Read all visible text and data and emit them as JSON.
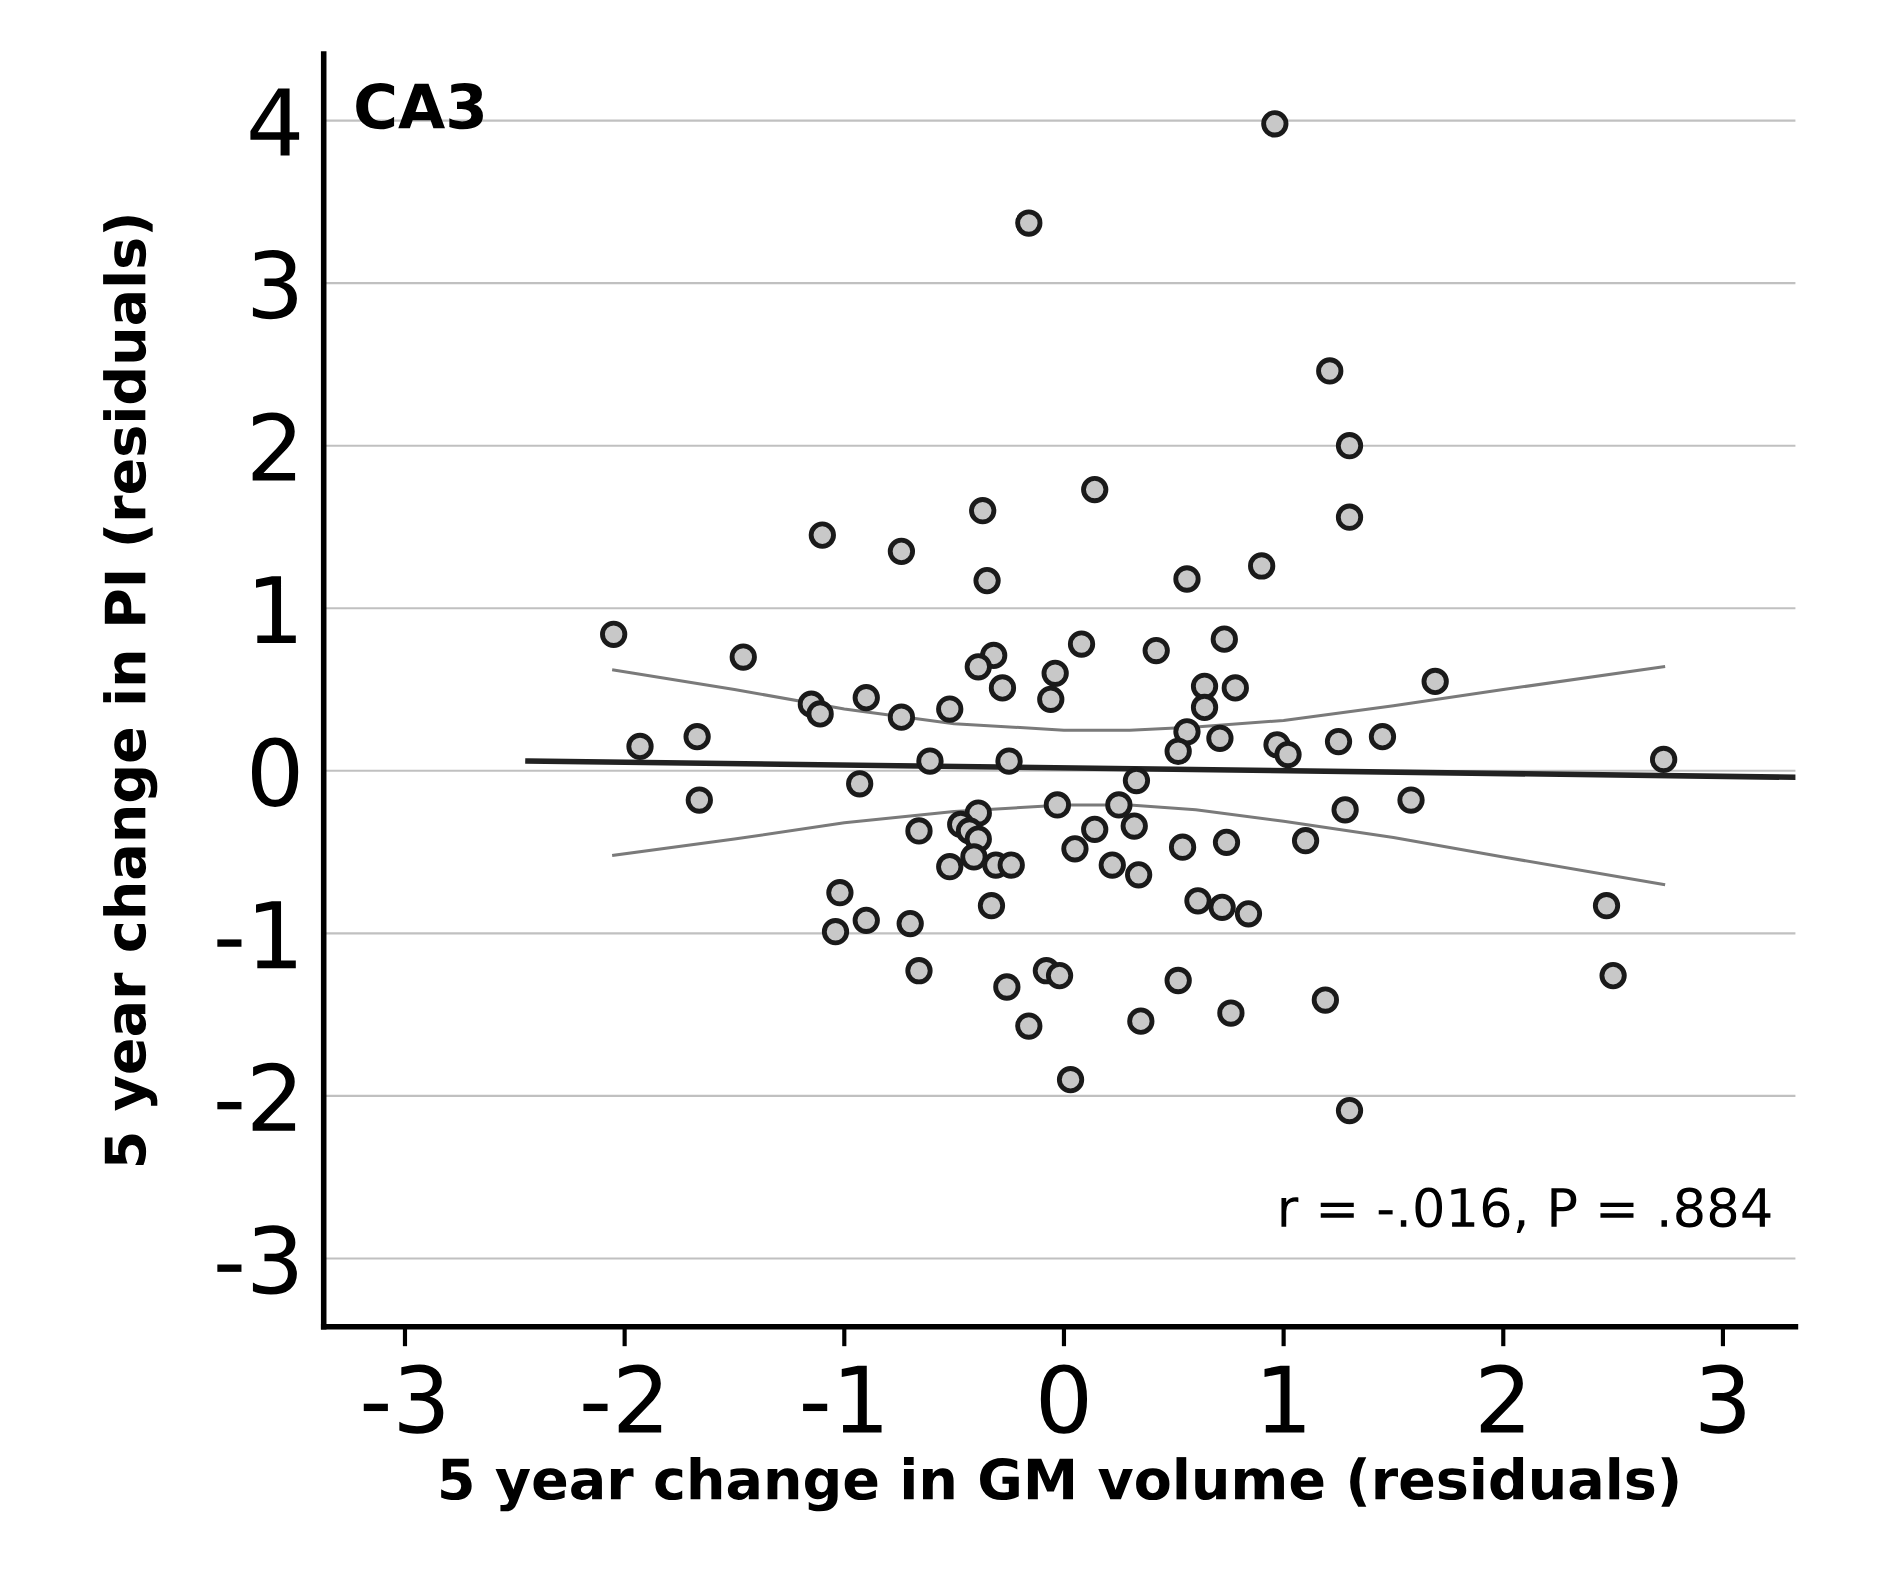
{
  "chart_data": {
    "type": "scatter",
    "title": "CA3",
    "xlabel": "5 year change in GM volume (residuals)",
    "ylabel": "5 year change in PI (residuals)",
    "xlim": [
      -3.37,
      3.33
    ],
    "ylim": [
      -3.42,
      4.41
    ],
    "xticks": [
      -3,
      -2,
      -1,
      0,
      1,
      2,
      3
    ],
    "yticks": [
      -3,
      -2,
      -1,
      0,
      1,
      2,
      3,
      4
    ],
    "grid": "y",
    "legend": false,
    "annotations": [
      "r = -.016, P = .884"
    ],
    "series": [
      {
        "marker": "circle",
        "color": "#c8c8c8",
        "x": [
          0.96,
          -0.16,
          1.21,
          1.3,
          1.3,
          0.14,
          -0.37,
          -1.1,
          -0.74,
          -0.35,
          0.56,
          0.9,
          -2.05,
          -1.46,
          -0.32,
          -0.39,
          0.08,
          0.42,
          0.73,
          -0.04,
          -0.28,
          -0.06,
          0.64,
          0.78,
          0.64,
          1.69,
          -0.9,
          -1.15,
          -1.11,
          -0.74,
          -0.52,
          -1.93,
          -1.67,
          0.56,
          0.71,
          0.52,
          0.97,
          1.02,
          1.25,
          1.45,
          -0.61,
          -0.25,
          2.73,
          -1.66,
          -0.93,
          0.33,
          -0.03,
          0.25,
          1.58,
          1.28,
          -0.39,
          -0.66,
          -0.47,
          -0.43,
          0.14,
          0.32,
          -0.39,
          1.1,
          0.05,
          0.54,
          0.74,
          -0.41,
          -0.52,
          -0.31,
          -0.24,
          0.22,
          0.34,
          -1.02,
          -0.33,
          0.61,
          0.72,
          0.84,
          2.47,
          -0.9,
          -0.7,
          -1.04,
          -0.66,
          -0.08,
          -0.02,
          2.5,
          -0.26,
          0.52,
          1.19,
          -0.16,
          0.35,
          0.76,
          0.03,
          1.3
        ],
        "values": [
          3.98,
          3.37,
          2.46,
          2.0,
          1.56,
          1.73,
          1.6,
          1.45,
          1.35,
          1.17,
          1.18,
          1.26,
          0.84,
          0.7,
          0.71,
          0.64,
          0.78,
          0.74,
          0.81,
          0.6,
          0.51,
          0.44,
          0.52,
          0.51,
          0.39,
          0.55,
          0.45,
          0.41,
          0.35,
          0.33,
          0.38,
          0.15,
          0.21,
          0.24,
          0.2,
          0.12,
          0.16,
          0.1,
          0.18,
          0.21,
          0.06,
          0.06,
          0.07,
          -0.18,
          -0.08,
          -0.06,
          -0.21,
          -0.21,
          -0.18,
          -0.24,
          -0.26,
          -0.37,
          -0.33,
          -0.37,
          -0.36,
          -0.34,
          -0.42,
          -0.43,
          -0.48,
          -0.47,
          -0.44,
          -0.53,
          -0.59,
          -0.58,
          -0.58,
          -0.58,
          -0.64,
          -0.75,
          -0.83,
          -0.8,
          -0.84,
          -0.88,
          -0.83,
          -0.92,
          -0.94,
          -0.99,
          -1.23,
          -1.23,
          -1.26,
          -1.26,
          -1.33,
          -1.29,
          -1.41,
          -1.57,
          -1.54,
          -1.49,
          -1.9,
          -2.09
        ]
      },
      {
        "type": "line",
        "marker": "none",
        "color": "#222222",
        "x": [
          -2.44,
          3.33
        ],
        "values": [
          0.06,
          -0.04
        ]
      },
      {
        "type": "line",
        "marker": "none",
        "color": "#7a7a7a",
        "x": [
          -2.05,
          -1.5,
          -1,
          -0.5,
          0,
          0.3,
          0.6,
          1,
          1.5,
          2,
          2.73
        ],
        "values": [
          0.62,
          0.5,
          0.38,
          0.29,
          0.25,
          0.25,
          0.27,
          0.31,
          0.4,
          0.5,
          0.64
        ]
      },
      {
        "type": "line",
        "marker": "none",
        "color": "#7a7a7a",
        "x": [
          -2.05,
          -1.5,
          -1,
          -0.5,
          0,
          0.3,
          0.6,
          1,
          1.5,
          2,
          2.73
        ],
        "values": [
          -0.52,
          -0.42,
          -0.32,
          -0.25,
          -0.21,
          -0.21,
          -0.24,
          -0.31,
          -0.41,
          -0.53,
          -0.7
        ]
      }
    ]
  }
}
